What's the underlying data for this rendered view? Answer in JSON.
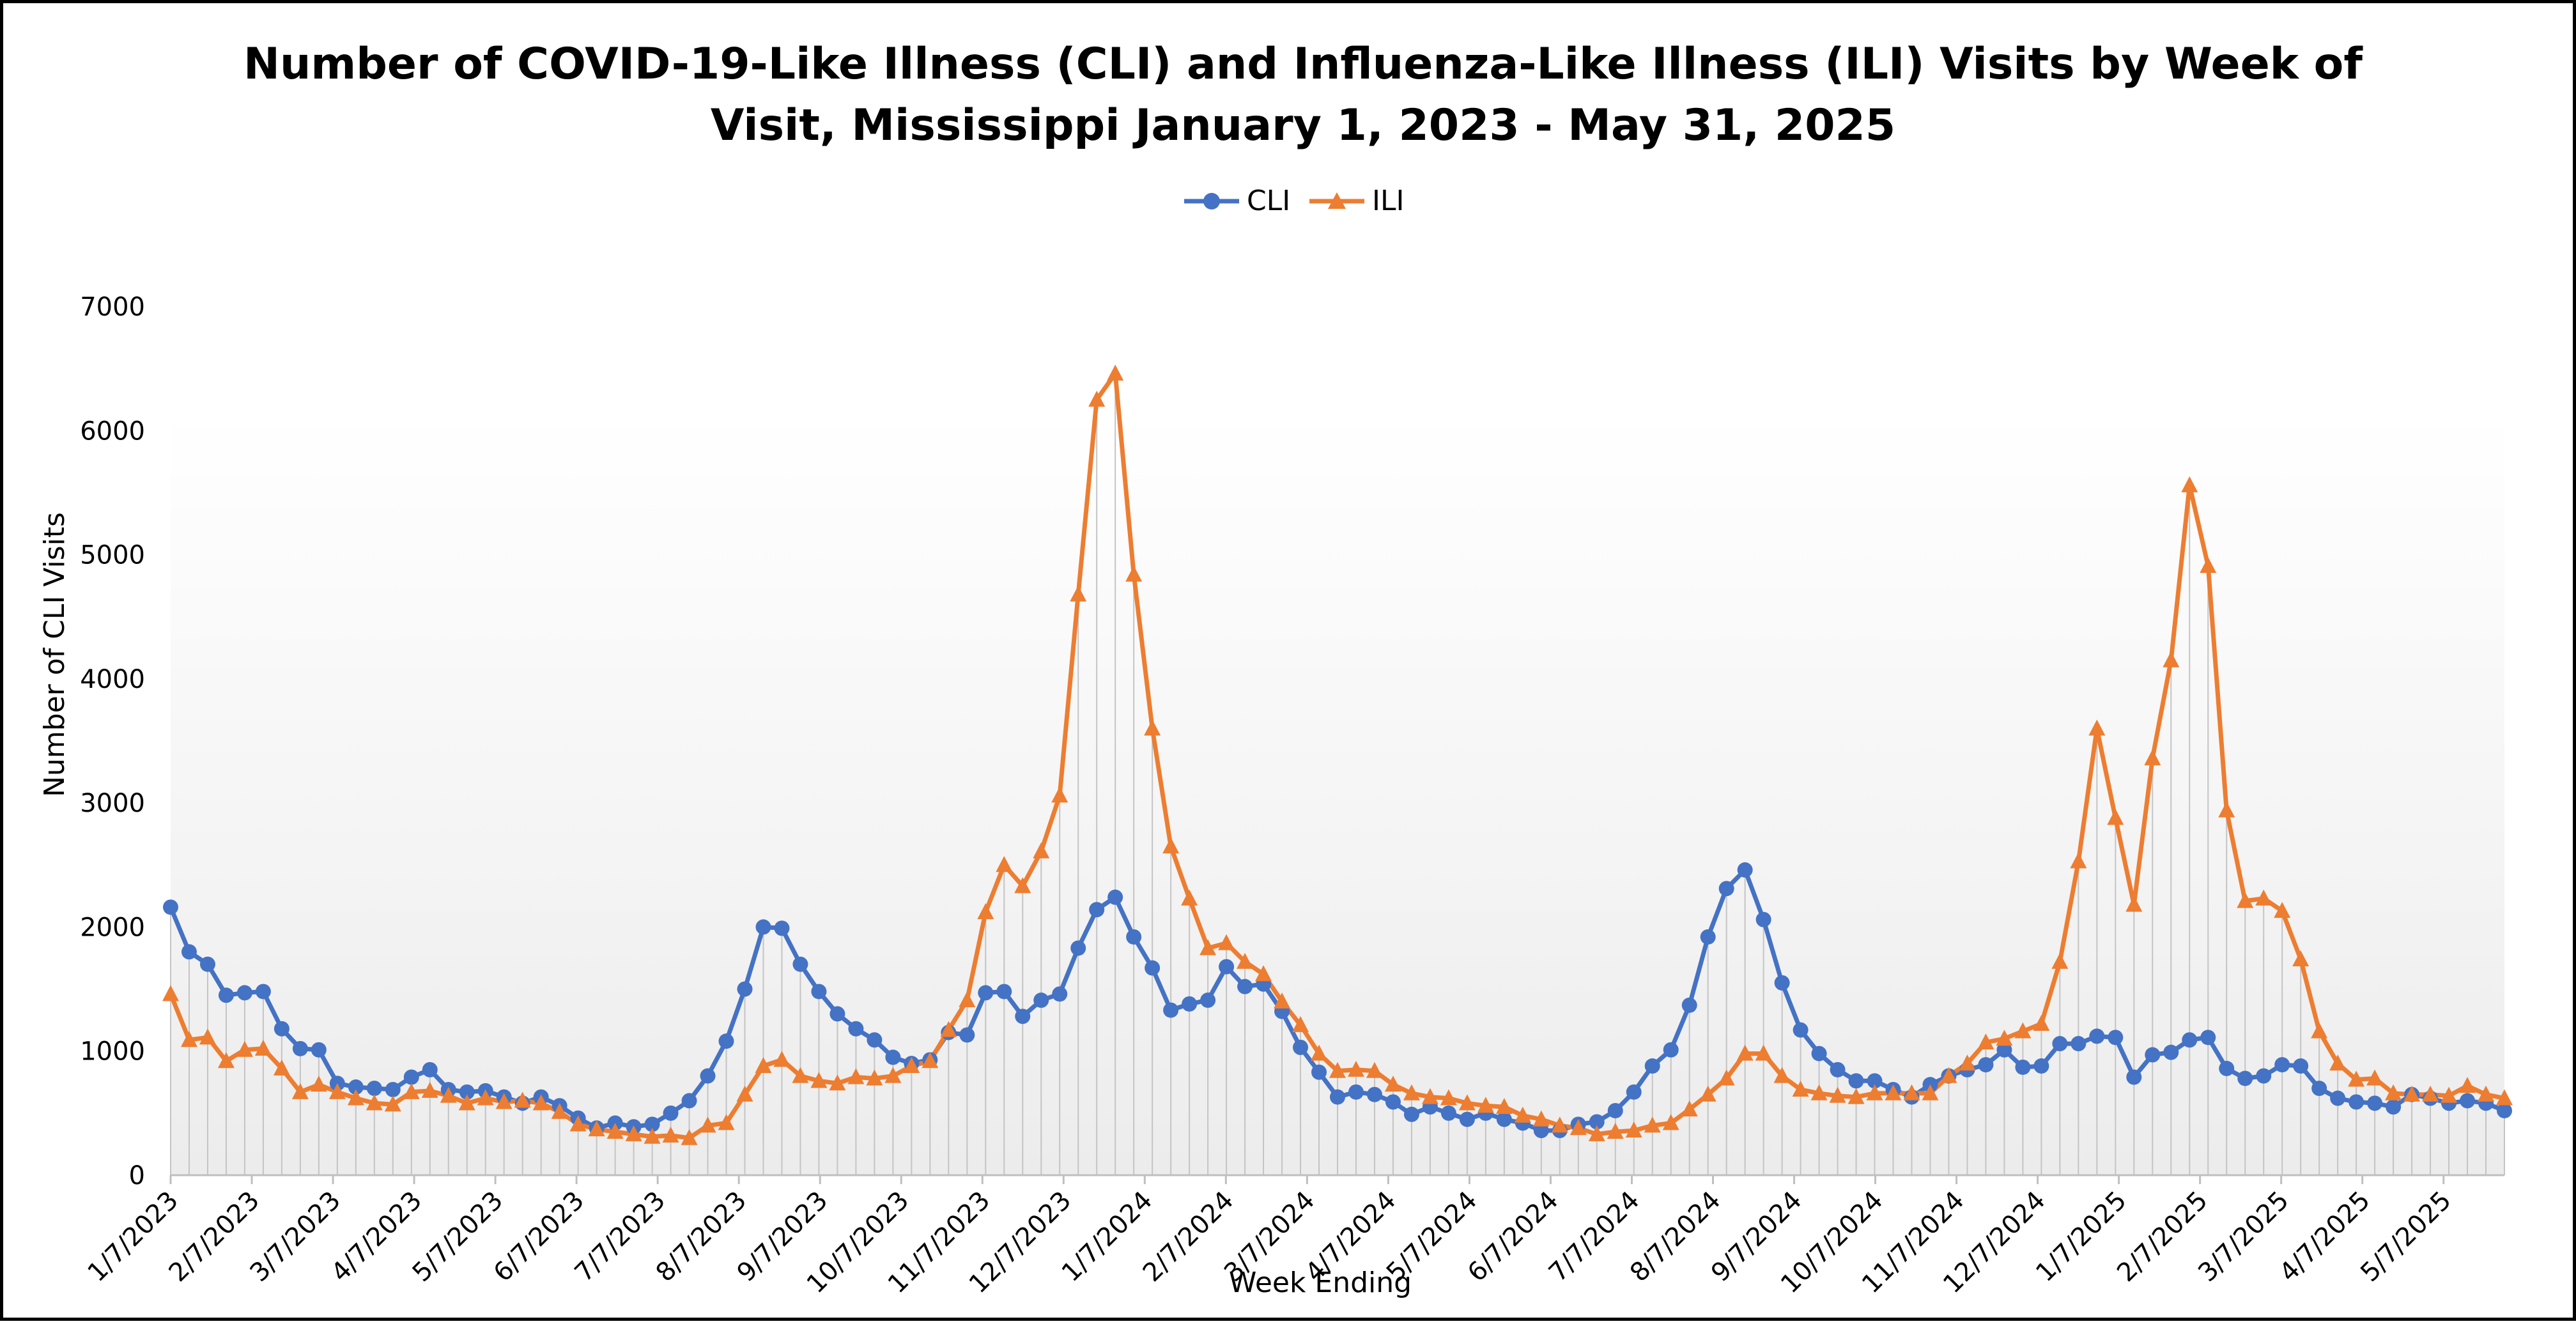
{
  "chart_data": {
    "type": "line",
    "title_line1": "Number of COVID-19-Like Illness (CLI) and Influenza-Like Illness (ILI) Visits by Week of",
    "title_line2": "Visit, Mississippi January 1, 2023 - May 31, 2025",
    "xlabel": "Week Ending",
    "ylabel": "Number of CLI Visits",
    "ylim": [
      0,
      7000
    ],
    "yticks": [
      0,
      1000,
      2000,
      3000,
      4000,
      5000,
      6000,
      7000
    ],
    "grid": false,
    "legend_position": "top-center",
    "x_tick_labels": [
      "1/7/2023",
      "2/7/2023",
      "3/7/2023",
      "4/7/2023",
      "5/7/2023",
      "6/7/2023",
      "7/7/2023",
      "8/7/2023",
      "9/7/2023",
      "10/7/2023",
      "11/7/2023",
      "12/7/2023",
      "1/7/2024",
      "2/7/2024",
      "3/7/2024",
      "4/7/2024",
      "5/7/2024",
      "6/7/2024",
      "7/7/2024",
      "8/7/2024",
      "9/7/2024",
      "10/7/2024",
      "11/7/2024",
      "12/7/2024",
      "1/7/2025",
      "2/7/2025",
      "3/7/2025",
      "4/7/2025",
      "5/7/2025"
    ],
    "series": [
      {
        "name": "CLI",
        "color": "#4472C4",
        "marker": "circle",
        "values": [
          2160,
          1800,
          1700,
          1450,
          1470,
          1480,
          1180,
          1020,
          1010,
          740,
          710,
          700,
          690,
          790,
          850,
          690,
          670,
          680,
          630,
          580,
          630,
          560,
          460,
          380,
          420,
          390,
          410,
          500,
          600,
          800,
          1080,
          1500,
          2000,
          1990,
          1700,
          1480,
          1300,
          1180,
          1090,
          950,
          900,
          930,
          1150,
          1130,
          1470,
          1480,
          1280,
          1410,
          1460,
          1830,
          2140,
          2240,
          1920,
          1670,
          1330,
          1380,
          1410,
          1680,
          1520,
          1540,
          1320,
          1030,
          830,
          630,
          670,
          650,
          590,
          490,
          550,
          500,
          450,
          500,
          450,
          420,
          360,
          360,
          410,
          430,
          520,
          670,
          880,
          1010,
          1370,
          1920,
          2310,
          2460,
          2060,
          1550,
          1170,
          980,
          850,
          760,
          760,
          690,
          630,
          730,
          800,
          850,
          890,
          1010,
          870,
          880,
          1060,
          1060,
          1120,
          1110,
          790,
          970,
          990,
          1090,
          1110,
          860,
          780,
          800,
          890,
          880,
          700,
          620,
          590,
          580,
          550,
          650,
          620,
          580,
          600,
          580,
          520
        ]
      },
      {
        "name": "ILI",
        "color": "#ED7D31",
        "marker": "triangle",
        "values": [
          1460,
          1090,
          1110,
          920,
          1010,
          1020,
          860,
          670,
          730,
          670,
          620,
          580,
          570,
          670,
          680,
          640,
          580,
          620,
          590,
          600,
          580,
          510,
          410,
          370,
          350,
          330,
          310,
          320,
          300,
          400,
          420,
          650,
          880,
          930,
          800,
          760,
          740,
          790,
          780,
          800,
          880,
          920,
          1170,
          1410,
          2120,
          2500,
          2330,
          2610,
          3060,
          4680,
          6250,
          6460,
          4840,
          3600,
          2650,
          2230,
          1830,
          1870,
          1720,
          1620,
          1400,
          1210,
          980,
          840,
          850,
          840,
          730,
          660,
          630,
          620,
          580,
          560,
          550,
          480,
          450,
          400,
          380,
          330,
          350,
          360,
          400,
          420,
          530,
          650,
          780,
          980,
          980,
          800,
          690,
          660,
          640,
          630,
          660,
          660,
          660,
          660,
          800,
          900,
          1070,
          1100,
          1160,
          1220,
          1720,
          2530,
          3600,
          2880,
          2180,
          3360,
          4150,
          5560,
          4910,
          2940,
          2210,
          2230,
          2130,
          1740,
          1160,
          900,
          770,
          780,
          660,
          650,
          650,
          640,
          720,
          650,
          620
        ]
      }
    ]
  }
}
